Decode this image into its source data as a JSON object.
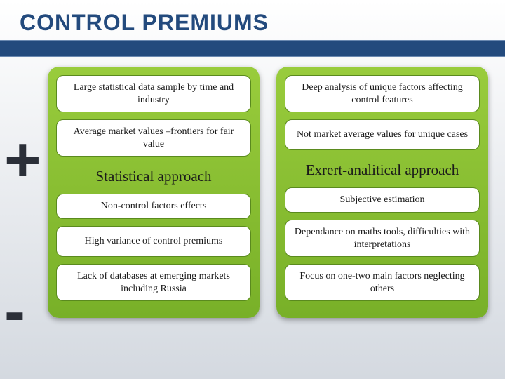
{
  "title": "CONTROL PREMIUMS",
  "symbols": {
    "plus": "+",
    "minus": "-"
  },
  "left": {
    "approach": "Statistical approach",
    "pros": [
      "Large statistical data sample by time and industry",
      "Average market values –frontiers for fair value"
    ],
    "cons": [
      "Non-control factors effects",
      "High variance of control premiums",
      "Lack of databases at emerging markets including Russia"
    ]
  },
  "right": {
    "approach": "Exrert-analitical approach",
    "pros": [
      "Deep analysis of unique factors affecting control features",
      "Not market average values for unique cases"
    ],
    "cons": [
      "Subjective estimation",
      "Dependance on maths tools, difficulties with interpretations",
      "Focus on one-two main factors neglecting others"
    ]
  },
  "colors": {
    "title": "#234a7d",
    "bar": "#234a7d",
    "panel_top": "#99cc3c",
    "panel_bottom": "#78b028",
    "pill_bg": "#ffffff",
    "pill_border": "#5a8a1e"
  }
}
